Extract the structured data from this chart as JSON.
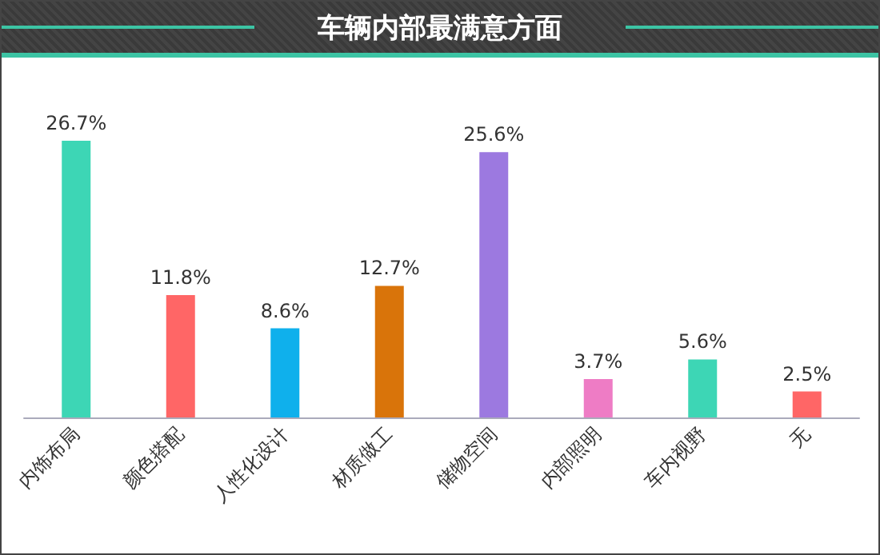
{
  "chart_data": {
    "type": "bar",
    "title": "车辆内部最满意方面",
    "categories": [
      "内饰布局",
      "颜色搭配",
      "人性化设计",
      "材质做工",
      "储物空间",
      "内部照明",
      "车内视野",
      "无"
    ],
    "values": [
      26.7,
      11.8,
      8.6,
      12.7,
      25.6,
      3.7,
      5.6,
      2.5
    ],
    "value_labels": [
      "26.7%",
      "11.8%",
      "8.6%",
      "12.7%",
      "25.6%",
      "3.7%",
      "5.6%",
      "2.5%"
    ],
    "colors": [
      "#3dd6b5",
      "#ff6666",
      "#0fb0ec",
      "#d9740a",
      "#9c79e0",
      "#ee7cc5",
      "#3dd6b5",
      "#ff6666"
    ]
  }
}
